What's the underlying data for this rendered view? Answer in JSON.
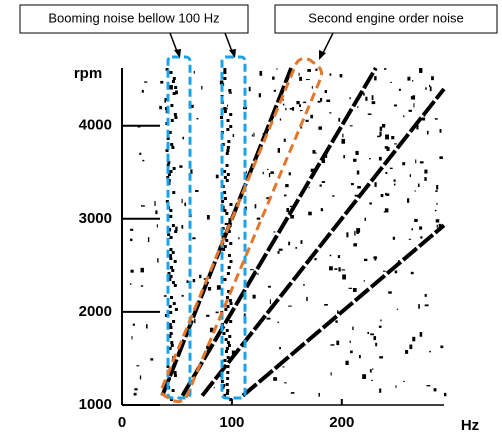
{
  "annotations": [
    "Booming noise bellow 100 Hz",
    "Second engine order noise"
  ],
  "chart_data": {
    "type": "line",
    "x_label": "Hz",
    "y_label": "rpm",
    "xlim": [
      0,
      293
    ],
    "ylim": [
      1000,
      4620
    ],
    "xticks": [
      0,
      100,
      200
    ],
    "yticks": [
      1000,
      2000,
      3000,
      4000
    ],
    "color": "#000000",
    "series": [
      {
        "x": [
          36.7,
          154
        ],
        "values": [
          1100,
          4620
        ]
      },
      {
        "x": [
          55,
          231
        ],
        "values": [
          1100,
          4620
        ]
      },
      {
        "x": [
          73,
          293
        ],
        "values": [
          1100,
          4395
        ]
      },
      {
        "x": [
          110,
          293
        ],
        "values": [
          1100,
          2930
        ]
      }
    ]
  }
}
